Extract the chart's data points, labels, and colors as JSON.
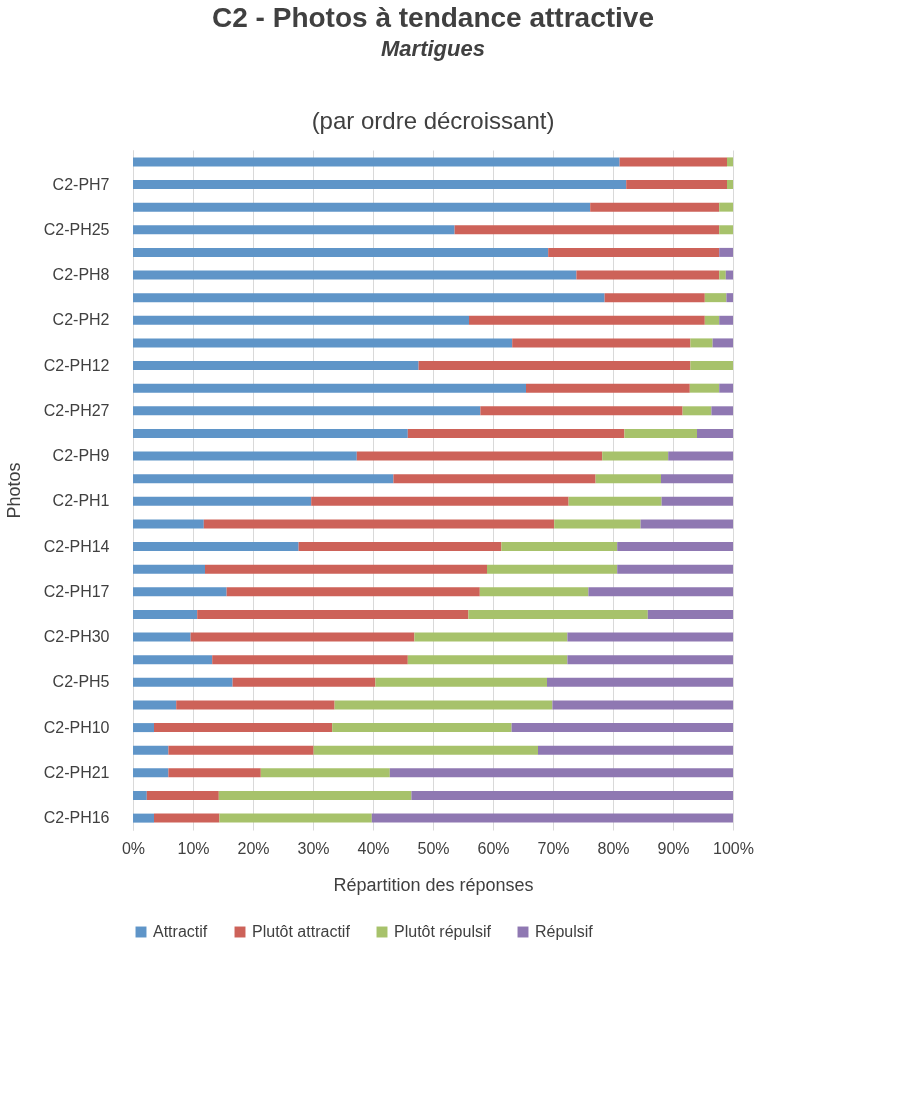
{
  "chart_data": {
    "type": "bar",
    "orientation": "horizontal",
    "stacked": true,
    "title": "C2 - Photos à tendance attractive",
    "subtitle": "Martigues",
    "annotations": [
      "(par ordre décroissant)"
    ],
    "xlabel": "Répartition des réponses",
    "ylabel": "Photos",
    "categories": [
      null,
      "C2-PH7",
      null,
      "C2-PH25",
      null,
      "C2-PH8",
      null,
      "C2-PH2",
      null,
      "C2-PH12",
      null,
      "C2-PH27",
      null,
      "C2-PH9",
      null,
      "C2-PH1",
      null,
      "C2-PH14",
      null,
      "C2-PH17",
      null,
      "C2-PH30",
      null,
      "C2-PH5",
      null,
      "C2-PH10",
      null,
      "C2-PH21",
      null,
      "C2-PH16"
    ],
    "series": [
      {
        "name": "Attractif",
        "color": "#5f95c8",
        "values": [
          81.1,
          82.2,
          76.2,
          53.6,
          69.2,
          73.9,
          78.6,
          56.0,
          63.2,
          47.6,
          65.5,
          57.9,
          45.8,
          37.3,
          43.4,
          29.7,
          11.8,
          27.6,
          12.0,
          15.6,
          10.7,
          9.6,
          13.2,
          16.6,
          7.2,
          3.5,
          5.9,
          5.9,
          2.3,
          3.5
        ]
      },
      {
        "name": "Plutôt attractif",
        "color": "#cd6259",
        "values": [
          17.9,
          16.8,
          21.5,
          44.1,
          28.5,
          23.8,
          16.7,
          39.3,
          29.7,
          45.3,
          27.3,
          33.7,
          36.1,
          40.9,
          33.7,
          42.9,
          58.4,
          33.8,
          47.0,
          42.2,
          45.2,
          37.3,
          32.6,
          23.8,
          26.4,
          29.7,
          24.2,
          15.4,
          12.0,
          10.9
        ]
      },
      {
        "name": "Plutôt répulsif",
        "color": "#a7c26b",
        "values": [
          1.0,
          1.0,
          2.3,
          2.3,
          0,
          1.1,
          3.6,
          2.4,
          3.7,
          7.1,
          4.9,
          4.8,
          12.1,
          11.0,
          10.9,
          15.5,
          14.4,
          19.3,
          21.7,
          18.1,
          29.9,
          25.5,
          26.6,
          28.6,
          36.3,
          29.9,
          37.4,
          21.5,
          32.1,
          25.4
        ]
      },
      {
        "name": "Répulsif",
        "color": "#8f78b2",
        "values": [
          0,
          0,
          0,
          0,
          2.3,
          1.2,
          1.1,
          2.3,
          3.4,
          0,
          2.3,
          3.6,
          6.0,
          10.8,
          12.0,
          11.9,
          15.4,
          19.3,
          19.3,
          24.1,
          14.2,
          27.6,
          27.6,
          31.0,
          30.1,
          36.9,
          32.5,
          57.2,
          53.6,
          60.2
        ]
      }
    ],
    "xlim": [
      0,
      100
    ],
    "xticks": [
      {
        "value": 0,
        "label": "0%"
      },
      {
        "value": 10,
        "label": "10%"
      },
      {
        "value": 20,
        "label": "20%"
      },
      {
        "value": 30,
        "label": "30%"
      },
      {
        "value": 40,
        "label": "40%"
      },
      {
        "value": 50,
        "label": "50%"
      },
      {
        "value": 60,
        "label": "60%"
      },
      {
        "value": 70,
        "label": "70%"
      },
      {
        "value": 80,
        "label": "80%"
      },
      {
        "value": 90,
        "label": "90%"
      },
      {
        "value": 100,
        "label": "100%"
      }
    ],
    "grid": "x",
    "legend": "bottom"
  }
}
